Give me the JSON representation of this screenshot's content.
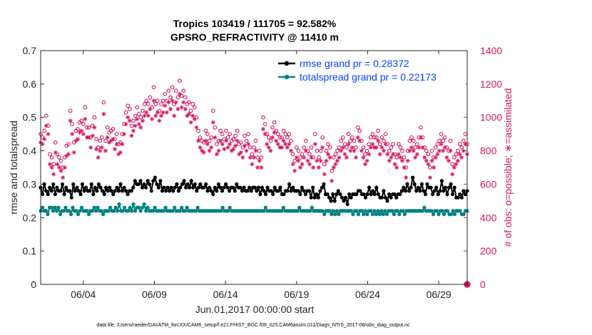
{
  "colors": {
    "rmse": "#000000",
    "spread": "#008080",
    "obs": "#d6185f",
    "legend_text": "#0645ff"
  },
  "chart_data": {
    "type": "line",
    "title": "Tropics 103419 / 111705 = 92.582%",
    "subtitle": "GPSRO_REFRACTIVITY @ 11410 m",
    "xlabel": "Jun.01,2017 00:00:00 start",
    "ylabel_left": "rmse and totalspread",
    "ylabel_right": "# of obs: o=possible; ∗=assimilated",
    "footer": "data file: /Users/raeder/DAI/ATM_forcXX/CAM6_setup/f.e21.FHIST_BGC.f09_025.CAM6assim.011/Diags_NTrS_2017-06/obs_diag_output.nc",
    "x_tick_labels": [
      "06/04",
      "06/09",
      "06/14",
      "06/19",
      "06/24",
      "06/29"
    ],
    "x_tick_days": [
      4,
      9,
      14,
      19,
      24,
      29
    ],
    "xlim_days": [
      1,
      31
    ],
    "ylim_left": [
      0,
      0.7
    ],
    "yticks_left": [
      "0",
      "0.1",
      "0.2",
      "0.3",
      "0.4",
      "0.5",
      "0.6",
      "0.7"
    ],
    "ylim_right": [
      0,
      1400
    ],
    "yticks_right": [
      "0",
      "200",
      "400",
      "600",
      "800",
      "1000",
      "1200",
      "1400"
    ],
    "legend_placement": "top-right",
    "grid": false,
    "series": [
      {
        "name": "rmse grand pr = 0.28372",
        "axis": "left",
        "marker": "dot",
        "values": [
          0.29,
          0.27,
          0.3,
          0.28,
          0.27,
          0.29,
          0.28,
          0.3,
          0.27,
          0.29,
          0.28,
          0.28,
          0.3,
          0.27,
          0.29,
          0.28,
          0.28,
          0.26,
          0.3,
          0.28,
          0.29,
          0.28,
          0.27,
          0.3,
          0.28,
          0.29,
          0.28,
          0.28,
          0.3,
          0.27,
          0.29,
          0.28,
          0.3,
          0.29,
          0.28,
          0.27,
          0.29,
          0.28,
          0.29,
          0.28,
          0.27,
          0.28,
          0.29,
          0.28,
          0.3,
          0.28,
          0.29,
          0.28,
          0.27,
          0.28,
          0.28,
          0.29,
          0.31,
          0.3,
          0.3,
          0.31,
          0.29,
          0.3,
          0.29,
          0.31,
          0.3,
          0.28,
          0.31,
          0.32,
          0.3,
          0.29,
          0.31,
          0.28,
          0.29,
          0.28,
          0.29,
          0.28,
          0.29,
          0.28,
          0.29,
          0.3,
          0.28,
          0.29,
          0.3,
          0.31,
          0.29,
          0.3,
          0.29,
          0.31,
          0.29,
          0.3,
          0.28,
          0.29,
          0.3,
          0.29,
          0.29,
          0.3,
          0.28,
          0.29,
          0.28,
          0.27,
          0.29,
          0.28,
          0.3,
          0.29,
          0.28,
          0.29,
          0.3,
          0.29,
          0.28,
          0.29,
          0.29,
          0.28,
          0.3,
          0.29,
          0.29,
          0.28,
          0.29,
          0.28,
          0.28,
          0.29,
          0.28,
          0.29,
          0.29,
          0.28,
          0.29,
          0.27,
          0.29,
          0.28,
          0.27,
          0.29,
          0.28,
          0.28,
          0.27,
          0.29,
          0.28,
          0.28,
          0.29,
          0.27,
          0.27,
          0.28,
          0.28,
          0.3,
          0.28,
          0.29,
          0.28,
          0.28,
          0.28,
          0.27,
          0.29,
          0.28,
          0.27,
          0.28,
          0.28,
          0.26,
          0.29,
          0.26,
          0.27,
          0.26,
          0.28,
          0.29,
          0.3,
          0.27,
          0.27,
          0.26,
          0.25,
          0.27,
          0.25,
          0.27,
          0.28,
          0.27,
          0.26,
          0.25,
          0.26,
          0.24,
          0.27,
          0.26,
          0.27,
          0.27,
          0.27,
          0.28,
          0.28,
          0.27,
          0.27,
          0.26,
          0.27,
          0.29,
          0.27,
          0.28,
          0.27,
          0.29,
          0.27,
          0.26,
          0.26,
          0.28,
          0.26,
          0.25,
          0.27,
          0.26,
          0.27,
          0.27,
          0.26,
          0.27,
          0.27,
          0.28,
          0.29,
          0.28,
          0.3,
          0.28,
          0.29,
          0.32,
          0.3,
          0.28,
          0.29,
          0.28,
          0.3,
          0.28,
          0.27,
          0.3,
          0.29,
          0.29,
          0.27,
          0.28,
          0.29,
          0.27,
          0.28,
          0.31,
          0.28,
          0.29,
          0.27,
          0.29,
          0.3,
          0.27,
          0.29,
          0.26,
          0.26,
          0.27,
          0.26,
          0.28,
          0.27,
          0.28
        ]
      },
      {
        "name": "totalspread grand pr = 0.22173",
        "axis": "left",
        "marker": "dot",
        "values": [
          0.22,
          0.23,
          0.22,
          0.22,
          0.21,
          0.23,
          0.23,
          0.22,
          0.23,
          0.22,
          0.23,
          0.21,
          0.22,
          0.22,
          0.23,
          0.22,
          0.22,
          0.21,
          0.23,
          0.22,
          0.22,
          0.21,
          0.22,
          0.23,
          0.22,
          0.22,
          0.22,
          0.21,
          0.22,
          0.22,
          0.23,
          0.22,
          0.23,
          0.22,
          0.22,
          0.21,
          0.22,
          0.22,
          0.22,
          0.23,
          0.22,
          0.22,
          0.23,
          0.22,
          0.24,
          0.22,
          0.22,
          0.23,
          0.22,
          0.22,
          0.23,
          0.22,
          0.24,
          0.22,
          0.23,
          0.23,
          0.22,
          0.23,
          0.24,
          0.22,
          0.23,
          0.22,
          0.22,
          0.22,
          0.23,
          0.22,
          0.22,
          0.22,
          0.22,
          0.22,
          0.23,
          0.22,
          0.22,
          0.22,
          0.22,
          0.23,
          0.22,
          0.22,
          0.22,
          0.23,
          0.22,
          0.22,
          0.23,
          0.22,
          0.22,
          0.22,
          0.22,
          0.22,
          0.23,
          0.22,
          0.22,
          0.22,
          0.22,
          0.22,
          0.22,
          0.22,
          0.22,
          0.22,
          0.22,
          0.22,
          0.22,
          0.22,
          0.23,
          0.22,
          0.22,
          0.22,
          0.23,
          0.22,
          0.22,
          0.22,
          0.22,
          0.22,
          0.22,
          0.22,
          0.22,
          0.22,
          0.22,
          0.22,
          0.22,
          0.22,
          0.22,
          0.22,
          0.22,
          0.22,
          0.22,
          0.22,
          0.23,
          0.22,
          0.22,
          0.22,
          0.22,
          0.22,
          0.22,
          0.22,
          0.22,
          0.22,
          0.23,
          0.22,
          0.22,
          0.22,
          0.22,
          0.22,
          0.22,
          0.22,
          0.22,
          0.23,
          0.22,
          0.22,
          0.22,
          0.22,
          0.22,
          0.22,
          0.23,
          0.22,
          0.22,
          0.22,
          0.22,
          0.22,
          0.22,
          0.21,
          0.22,
          0.22,
          0.22,
          0.21,
          0.22,
          0.21,
          0.22,
          0.21,
          0.22,
          0.22,
          0.22,
          0.22,
          0.22,
          0.22,
          0.22,
          0.21,
          0.22,
          0.22,
          0.21,
          0.22,
          0.22,
          0.21,
          0.22,
          0.21,
          0.22,
          0.22,
          0.21,
          0.22,
          0.21,
          0.22,
          0.21,
          0.22,
          0.21,
          0.22,
          0.21,
          0.22,
          0.22,
          0.22,
          0.21,
          0.22,
          0.22,
          0.21,
          0.22,
          0.22,
          0.21,
          0.22,
          0.22,
          0.22,
          0.22,
          0.22,
          0.22,
          0.22,
          0.22,
          0.22,
          0.22,
          0.23,
          0.22,
          0.22,
          0.22,
          0.22,
          0.21,
          0.22,
          0.22,
          0.21,
          0.22,
          0.22,
          0.21,
          0.22,
          0.22,
          0.21,
          0.21,
          0.22,
          0.21,
          0.22,
          0.22,
          0.22,
          0.21,
          0.21,
          0.22,
          0.22
        ]
      },
      {
        "name": "possible",
        "axis": "right",
        "marker": "circle",
        "values": [
          900,
          880,
          920,
          1010,
          950,
          780,
          760,
          720,
          850,
          780,
          760,
          740,
          700,
          760,
          830,
          840,
          1040,
          960,
          850,
          920,
          930,
          970,
          980,
          960,
          1060,
          940,
          940,
          880,
          950,
          1000,
          870,
          820,
          860,
          880,
          1090,
          860,
          940,
          910,
          920,
          930,
          870,
          900,
          840,
          850,
          900,
          960,
          1030,
          1070,
          1050,
          950,
          980,
          1010,
          1060,
          1020,
          1000,
          1040,
          1080,
          1100,
          1080,
          1120,
          1060,
          1180,
          1080,
          1100,
          1040,
          1080,
          1100,
          1140,
          1100,
          1160,
          1120,
          1180,
          1080,
          1160,
          1120,
          1220,
          1130,
          1160,
          1120,
          1080,
          1090,
          1040,
          1080,
          1060,
          1000,
          920,
          880,
          860,
          850,
          920,
          900,
          860,
          880,
          1040,
          940,
          840,
          860,
          920,
          900,
          870,
          920,
          880,
          900,
          860,
          870,
          890,
          920,
          840,
          850,
          820,
          890,
          860,
          900,
          820,
          780,
          820,
          860,
          760,
          800,
          760,
          1000,
          960,
          900,
          880,
          860,
          940,
          970,
          920,
          900,
          880,
          880,
          920,
          900,
          880,
          900,
          860,
          780,
          740,
          820,
          800,
          760,
          780,
          820,
          860,
          800,
          780,
          820,
          760,
          900,
          800,
          760,
          800,
          880,
          720,
          800,
          840,
          820,
          680,
          760,
          780,
          800,
          820,
          860,
          880,
          840,
          820,
          900,
          860,
          880,
          860,
          820,
          940,
          920,
          860,
          820,
          780,
          800,
          840,
          880,
          900,
          880,
          880,
          920,
          840,
          880,
          860,
          900,
          840,
          800,
          820,
          840,
          780,
          760,
          840,
          820,
          800,
          760,
          700,
          800,
          860,
          880,
          860,
          820,
          840,
          880,
          940,
          880,
          820,
          800,
          780,
          700,
          800,
          760,
          820,
          840,
          860,
          900,
          860,
          880,
          820,
          800,
          860,
          720,
          760,
          780,
          800,
          840,
          820,
          860,
          900,
          840
        ]
      },
      {
        "name": "assimilated",
        "axis": "right",
        "marker": "asterisk",
        "values": [
          850,
          840,
          870,
          950,
          900,
          720,
          700,
          660,
          790,
          720,
          700,
          680,
          640,
          700,
          770,
          780,
          980,
          900,
          790,
          860,
          870,
          910,
          920,
          900,
          990,
          880,
          880,
          820,
          890,
          940,
          810,
          760,
          800,
          820,
          1020,
          800,
          880,
          850,
          860,
          870,
          810,
          840,
          780,
          790,
          840,
          900,
          960,
          1000,
          980,
          890,
          920,
          950,
          990,
          960,
          940,
          980,
          1010,
          1030,
          1010,
          1050,
          990,
          1100,
          1010,
          1030,
          980,
          1010,
          1030,
          1070,
          1030,
          1090,
          1050,
          1100,
          1010,
          1090,
          1050,
          1140,
          1060,
          1090,
          1050,
          1010,
          1020,
          970,
          1010,
          990,
          940,
          860,
          820,
          800,
          790,
          860,
          840,
          800,
          820,
          970,
          880,
          780,
          800,
          860,
          840,
          810,
          860,
          820,
          840,
          800,
          810,
          830,
          860,
          780,
          790,
          760,
          830,
          800,
          840,
          760,
          720,
          760,
          800,
          700,
          740,
          700,
          930,
          900,
          840,
          820,
          800,
          880,
          910,
          860,
          840,
          820,
          820,
          860,
          840,
          820,
          840,
          800,
          720,
          680,
          760,
          740,
          700,
          720,
          760,
          800,
          740,
          720,
          760,
          700,
          840,
          740,
          700,
          740,
          820,
          660,
          740,
          780,
          760,
          620,
          700,
          720,
          740,
          760,
          800,
          820,
          780,
          760,
          840,
          800,
          820,
          800,
          760,
          880,
          860,
          800,
          760,
          720,
          740,
          780,
          820,
          840,
          820,
          820,
          860,
          780,
          820,
          800,
          840,
          780,
          740,
          760,
          780,
          720,
          700,
          780,
          760,
          740,
          700,
          640,
          740,
          800,
          820,
          800,
          760,
          780,
          820,
          880,
          820,
          760,
          740,
          720,
          640,
          740,
          700,
          760,
          780,
          800,
          840,
          800,
          820,
          760,
          740,
          800,
          660,
          700,
          720,
          740,
          780,
          760,
          800,
          840,
          780
        ]
      }
    ]
  }
}
